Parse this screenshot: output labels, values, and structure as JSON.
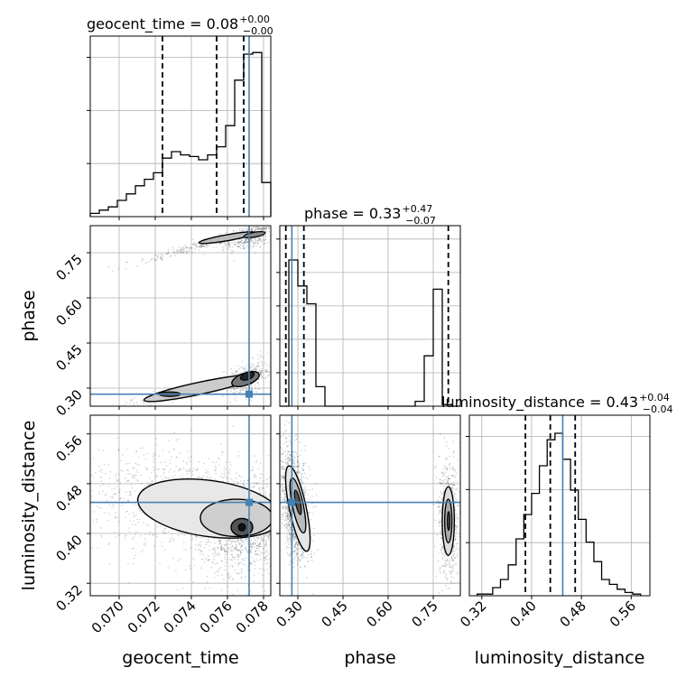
{
  "chart_data": {
    "type": "corner",
    "parameters": [
      "geocent_time",
      "phase",
      "luminosity_distance"
    ],
    "injection": {
      "geocent_time": 0.0772,
      "phase": 0.28,
      "luminosity_distance": 0.45
    },
    "colors": {
      "truth": "#4682b4",
      "hist": "#000000",
      "grid": "#b0b0b0",
      "points": "#000000"
    },
    "grid": true,
    "titles": {
      "geocent_time": {
        "prefix": "geocent_time = 0.08",
        "plus": "+0.00",
        "minus": "−0.00"
      },
      "phase": {
        "prefix": "phase = 0.33",
        "plus": "+0.47",
        "minus": "−0.07"
      },
      "luminosity_distance": {
        "prefix": "luminosity_distance = 0.43",
        "plus": "+0.04",
        "minus": "−0.04"
      }
    },
    "axis_labels": {
      "geocent_time": "geocent_time",
      "phase": "phase",
      "luminosity_distance": "luminosity_distance"
    },
    "ticks": {
      "geocent_time": {
        "values": [
          0.07,
          0.072,
          0.074,
          0.076,
          0.078
        ],
        "labels": [
          "0.070",
          "0.072",
          "0.074",
          "0.076",
          "0.078"
        ]
      },
      "phase": {
        "values": [
          0.3,
          0.45,
          0.6,
          0.75
        ],
        "labels": [
          "0.30",
          "0.45",
          "0.60",
          "0.75"
        ]
      },
      "luminosity_distance": {
        "values": [
          0.32,
          0.4,
          0.48,
          0.56
        ],
        "labels": [
          "0.32",
          "0.40",
          "0.48",
          "0.56"
        ]
      }
    },
    "ranges": {
      "geocent_time": [
        0.0684,
        0.0784
      ],
      "phase": [
        0.24,
        0.84
      ],
      "luminosity_distance": [
        0.3,
        0.59
      ]
    },
    "histograms": {
      "geocent_time": {
        "edges": [
          0.0684,
          0.0689,
          0.0694,
          0.0699,
          0.0704,
          0.0709,
          0.0714,
          0.0719,
          0.0724,
          0.0729,
          0.0734,
          0.0739,
          0.0744,
          0.0749,
          0.0754,
          0.0759,
          0.0764,
          0.0769,
          0.0774,
          0.0779,
          0.0784
        ],
        "counts": [
          0.02,
          0.04,
          0.06,
          0.1,
          0.14,
          0.19,
          0.23,
          0.27,
          0.36,
          0.4,
          0.38,
          0.37,
          0.35,
          0.38,
          0.43,
          0.56,
          0.84,
          1.0,
          1.01,
          0.21
        ],
        "quantile_lines": [
          0.0724,
          0.0754,
          0.0769
        ]
      },
      "phase": {
        "edges": [
          0.24,
          0.27,
          0.3,
          0.33,
          0.36,
          0.39,
          0.42,
          0.45,
          0.48,
          0.51,
          0.54,
          0.57,
          0.6,
          0.63,
          0.66,
          0.69,
          0.72,
          0.75,
          0.78,
          0.81,
          0.84
        ],
        "counts": [
          0.0,
          0.9,
          0.74,
          0.63,
          0.12,
          0.0,
          0.0,
          0.0,
          0.0,
          0.0,
          0.0,
          0.0,
          0.0,
          0.0,
          0.0,
          0.03,
          0.31,
          0.72,
          0.01,
          0.0
        ],
        "quantile_lines": [
          0.26,
          0.32,
          0.8
        ]
      },
      "luminosity_distance": {
        "edges": [
          0.3125,
          0.325,
          0.3375,
          0.35,
          0.3625,
          0.375,
          0.3875,
          0.4,
          0.4125,
          0.425,
          0.4375,
          0.45,
          0.4625,
          0.475,
          0.4875,
          0.5,
          0.5125,
          0.525,
          0.5375,
          0.55,
          0.5625,
          0.575
        ],
        "counts": [
          0.01,
          0.01,
          0.05,
          0.1,
          0.19,
          0.35,
          0.5,
          0.63,
          0.8,
          0.96,
          1.0,
          0.84,
          0.65,
          0.47,
          0.33,
          0.21,
          0.1,
          0.07,
          0.04,
          0.02,
          0.01
        ],
        "quantile_lines": [
          0.39,
          0.43,
          0.47
        ]
      }
    }
  }
}
